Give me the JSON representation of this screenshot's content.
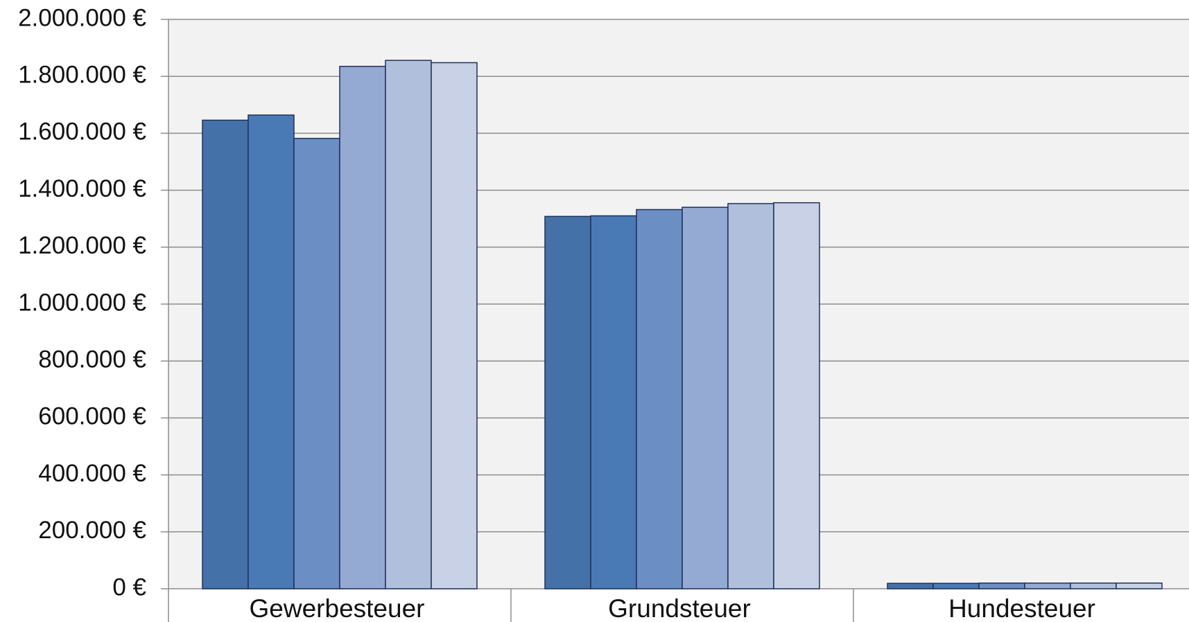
{
  "chart_data": {
    "type": "bar",
    "categories": [
      "Gewerbesteuer",
      "Grundsteuer",
      "Hundesteuer"
    ],
    "series": [
      {
        "color": "#4472a8",
        "values": [
          1646000,
          1308000,
          19000
        ]
      },
      {
        "color": "#4a7ab5",
        "values": [
          1664000,
          1310000,
          19000
        ]
      },
      {
        "color": "#6b8fc4",
        "values": [
          1582000,
          1332000,
          20000
        ]
      },
      {
        "color": "#94aad2",
        "values": [
          1835000,
          1340000,
          20000
        ]
      },
      {
        "color": "#b0c0dc",
        "values": [
          1856000,
          1353000,
          20000
        ]
      },
      {
        "color": "#c8d1e5",
        "values": [
          1848000,
          1356000,
          20000
        ]
      }
    ],
    "ylim": [
      0,
      2000000
    ],
    "yticks": [
      {
        "value": 0,
        "label": "0 €"
      },
      {
        "value": 200000,
        "label": "200.000 €"
      },
      {
        "value": 400000,
        "label": "400.000 €"
      },
      {
        "value": 600000,
        "label": "600.000 €"
      },
      {
        "value": 800000,
        "label": "800.000 €"
      },
      {
        "value": 1000000,
        "label": "1.000.000 €"
      },
      {
        "value": 1200000,
        "label": "1.200.000 €"
      },
      {
        "value": 1400000,
        "label": "1.400.000 €"
      },
      {
        "value": 1600000,
        "label": "1.600.000 €"
      },
      {
        "value": 1800000,
        "label": "1.800.000 €"
      },
      {
        "value": 2000000,
        "label": "2.000.000 €"
      }
    ],
    "grid": true
  }
}
